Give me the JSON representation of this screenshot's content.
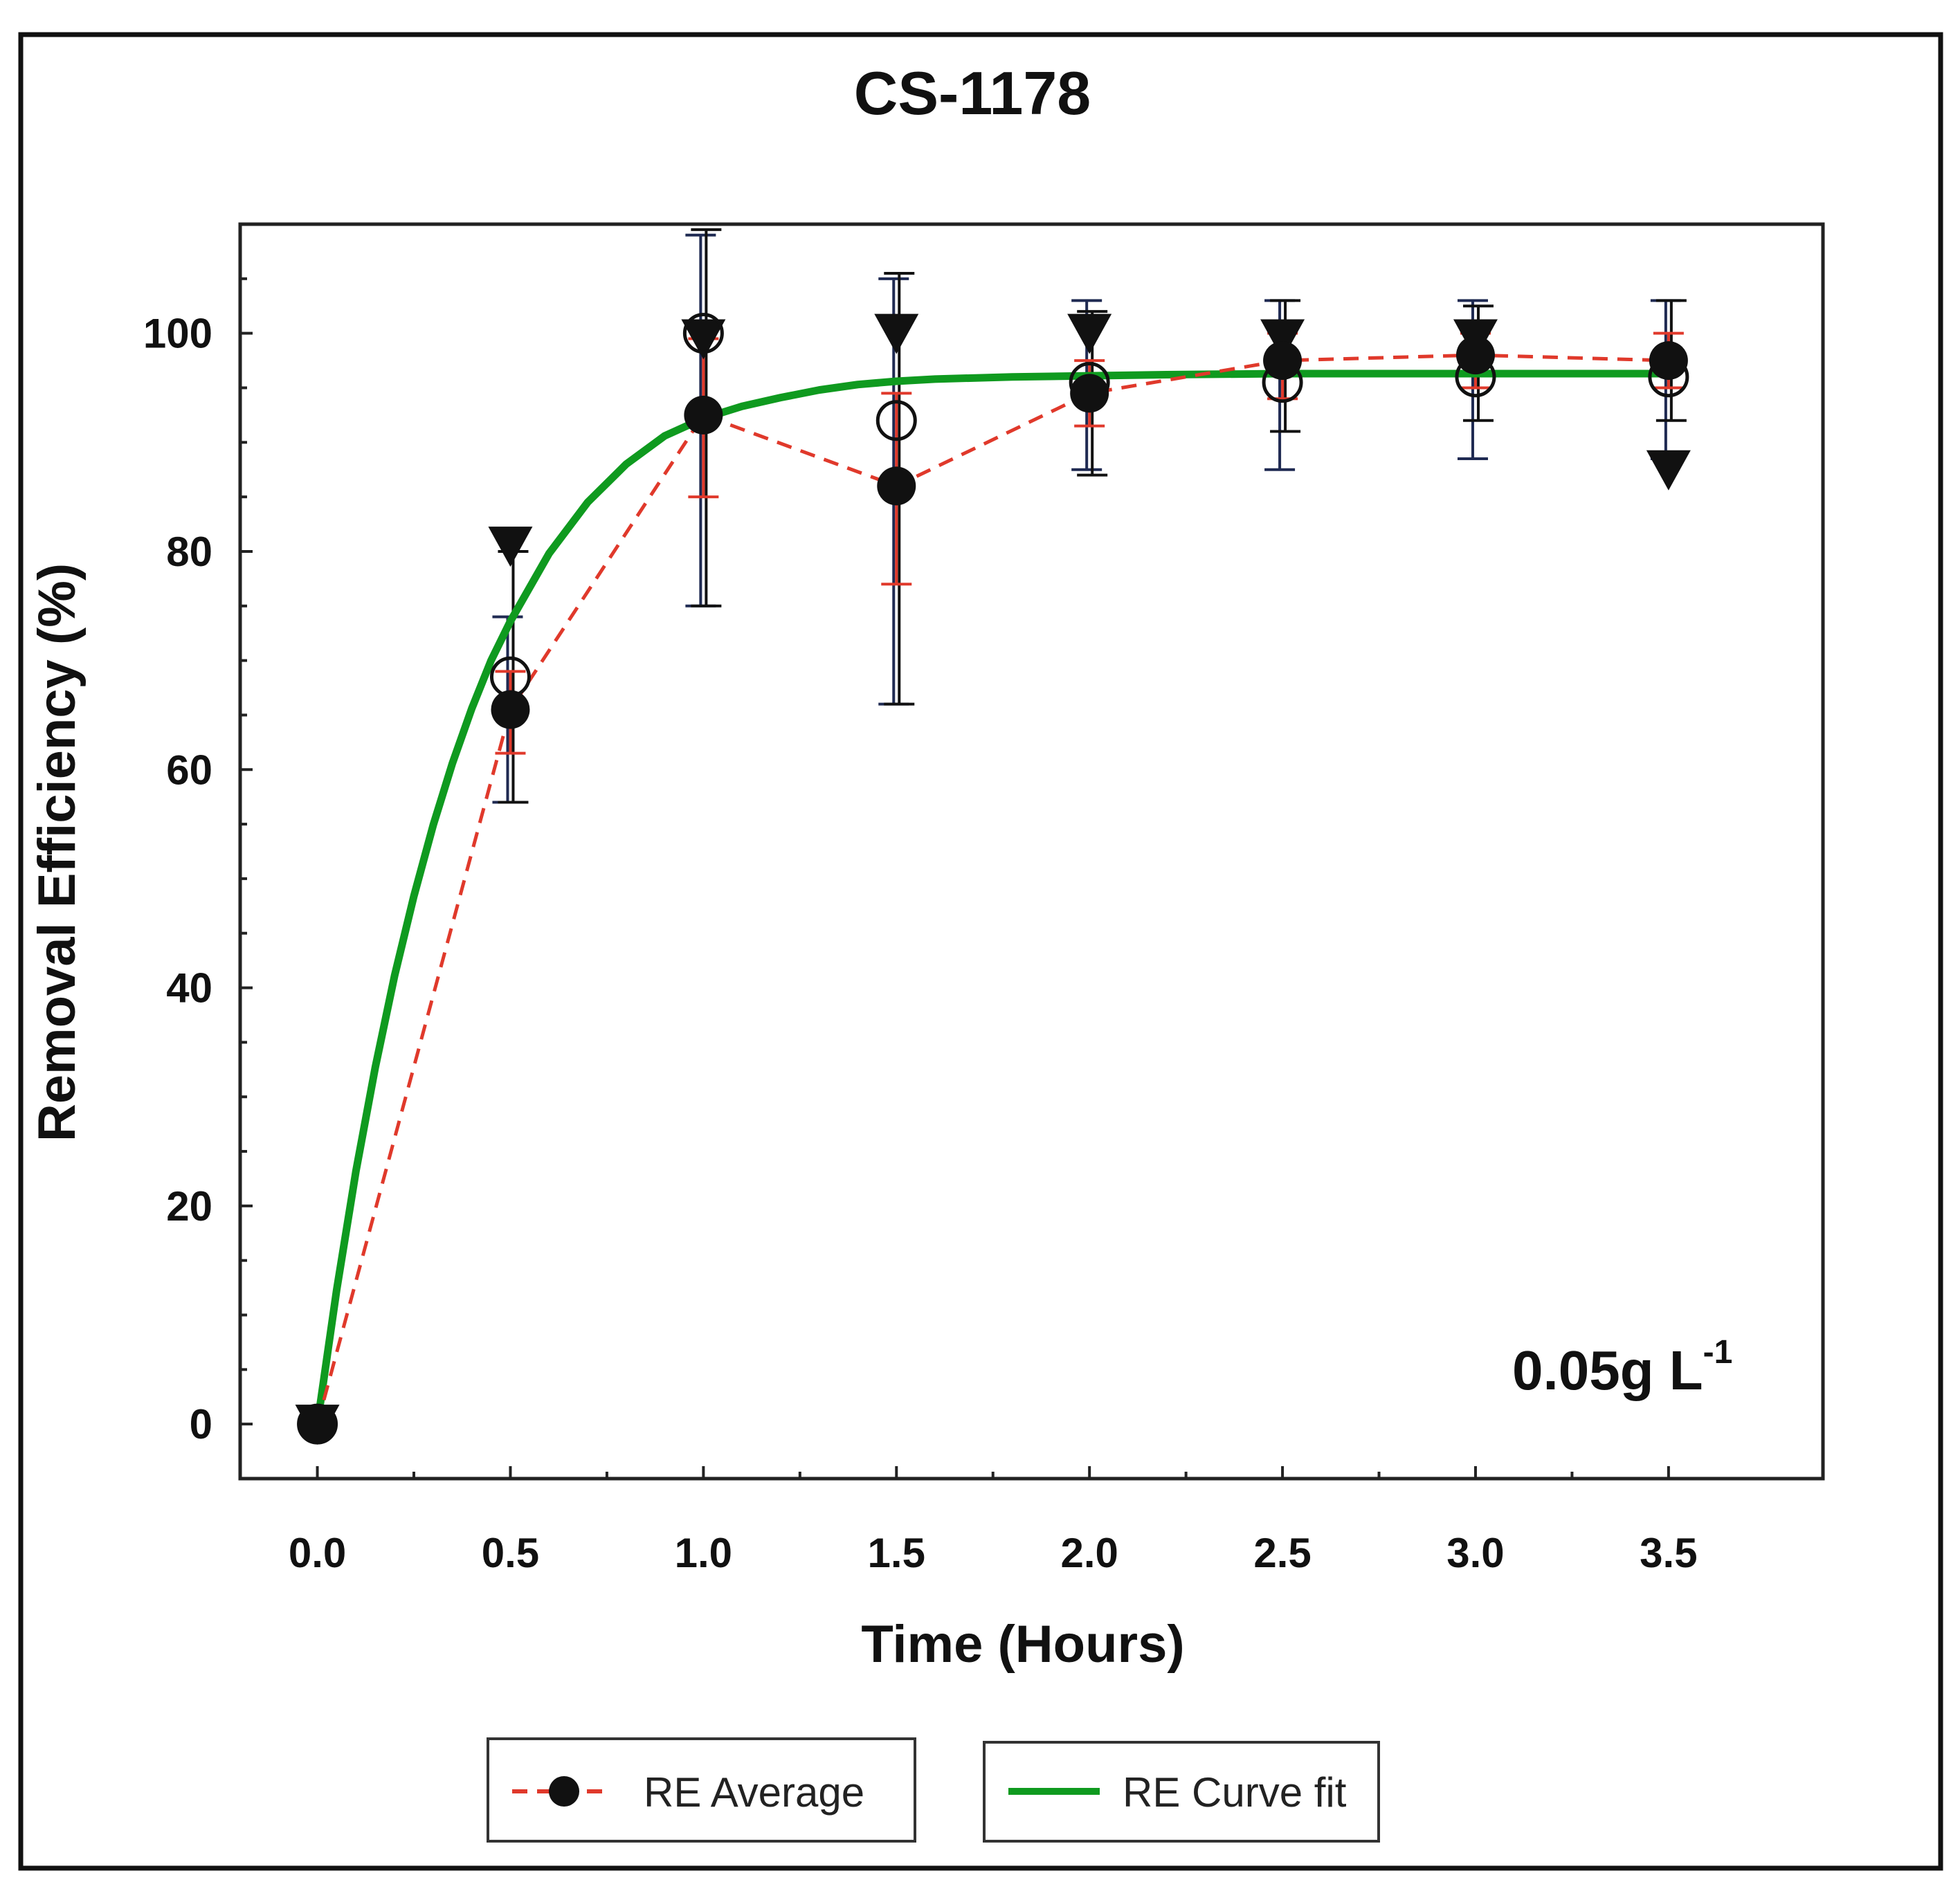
{
  "chart_data": {
    "type": "line",
    "title": "CS-1178",
    "xlabel": "Time (Hours)",
    "ylabel": "Removal Efficiency (%)",
    "xlim": [
      -0.2,
      3.9
    ],
    "ylim": [
      -5,
      110
    ],
    "xticks": [
      0.0,
      0.5,
      1.0,
      1.5,
      2.0,
      2.5,
      3.0,
      3.5
    ],
    "xtick_labels": [
      "0.0",
      "0.5",
      "1.0",
      "1.5",
      "2.0",
      "2.5",
      "3.0",
      "3.5"
    ],
    "yticks": [
      0,
      20,
      40,
      60,
      80,
      100
    ],
    "ytick_labels": [
      "0",
      "20",
      "40",
      "60",
      "80",
      "100"
    ],
    "annotation": {
      "text": "0.05g L",
      "superscript": "-1",
      "position": "bottom-right"
    },
    "legend": {
      "placement": "bottom",
      "entries": [
        {
          "label": "RE Average",
          "style": "red dashed line with filled black circle"
        },
        {
          "label": "RE Curve fit",
          "style": "solid green line"
        }
      ]
    },
    "series": [
      {
        "name": "RE Average",
        "line": "dashed",
        "color": "#e0392b",
        "x": [
          0.0,
          0.5,
          1.0,
          1.5,
          2.0,
          2.5,
          3.0,
          3.5
        ],
        "y": [
          0,
          65.5,
          92.5,
          86,
          94.5,
          97.5,
          98,
          97.5
        ],
        "yerr_low": [
          0,
          61.5,
          85,
          77,
          91.5,
          94,
          95,
          95
        ],
        "yerr_high": [
          0,
          69,
          99.5,
          94.5,
          97.5,
          100,
          100,
          100
        ]
      },
      {
        "name": "RE Curve fit",
        "line": "solid",
        "color": "#0f9a1f",
        "x": [
          0,
          0.05,
          0.1,
          0.15,
          0.2,
          0.25,
          0.3,
          0.35,
          0.4,
          0.45,
          0.5,
          0.6,
          0.7,
          0.8,
          0.9,
          1.0,
          1.1,
          1.2,
          1.3,
          1.4,
          1.5,
          1.6,
          1.8,
          2.0,
          2.2,
          2.5,
          3.0,
          3.5
        ],
        "y": [
          0,
          12.3,
          23.2,
          32.7,
          41.1,
          48.4,
          54.9,
          60.6,
          65.6,
          70.0,
          73.6,
          79.8,
          84.5,
          88.0,
          90.6,
          92.2,
          93.3,
          94.1,
          94.8,
          95.3,
          95.6,
          95.8,
          96.0,
          96.1,
          96.2,
          96.3,
          96.3,
          96.3
        ]
      },
      {
        "name": "Replicate (open circle)",
        "marker": "open-circle",
        "x": [
          0.0,
          0.5,
          1.0,
          1.5,
          2.0,
          2.5,
          3.0,
          3.5
        ],
        "y": [
          0,
          68.5,
          100,
          92,
          95.5,
          95.5,
          96,
          96
        ],
        "yerr_low": [
          0,
          57,
          75,
          66,
          87.5,
          87.5,
          88.5,
          88.5
        ],
        "yerr_high": [
          0,
          74,
          109,
          105,
          103,
          103,
          103,
          103
        ]
      },
      {
        "name": "Replicate (triangle)",
        "marker": "filled-down-triangle",
        "x": [
          0.0,
          0.5,
          1.0,
          1.5,
          2.0,
          2.5,
          3.0,
          3.5
        ],
        "y": [
          0,
          80.5,
          99.5,
          100,
          100,
          99.5,
          99.5,
          87.5
        ],
        "yerr_low": [
          0,
          57,
          75,
          66,
          87,
          91,
          92,
          92
        ],
        "yerr_high": [
          0,
          80,
          109.5,
          105.5,
          102,
          103,
          102.5,
          103
        ]
      }
    ]
  }
}
